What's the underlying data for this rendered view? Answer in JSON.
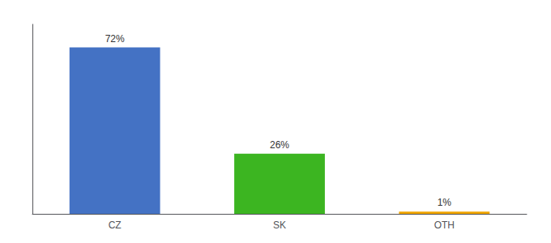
{
  "chart_data": {
    "type": "bar",
    "categories": [
      "CZ",
      "SK",
      "OTH"
    ],
    "values": [
      72,
      26,
      1
    ],
    "value_labels": [
      "72%",
      "26%",
      "1%"
    ],
    "colors": [
      "#4472c4",
      "#3cb521",
      "#f0a500"
    ],
    "ylim": [
      0,
      82
    ],
    "data_labels": true,
    "tick_labels": "x",
    "grid": false
  }
}
